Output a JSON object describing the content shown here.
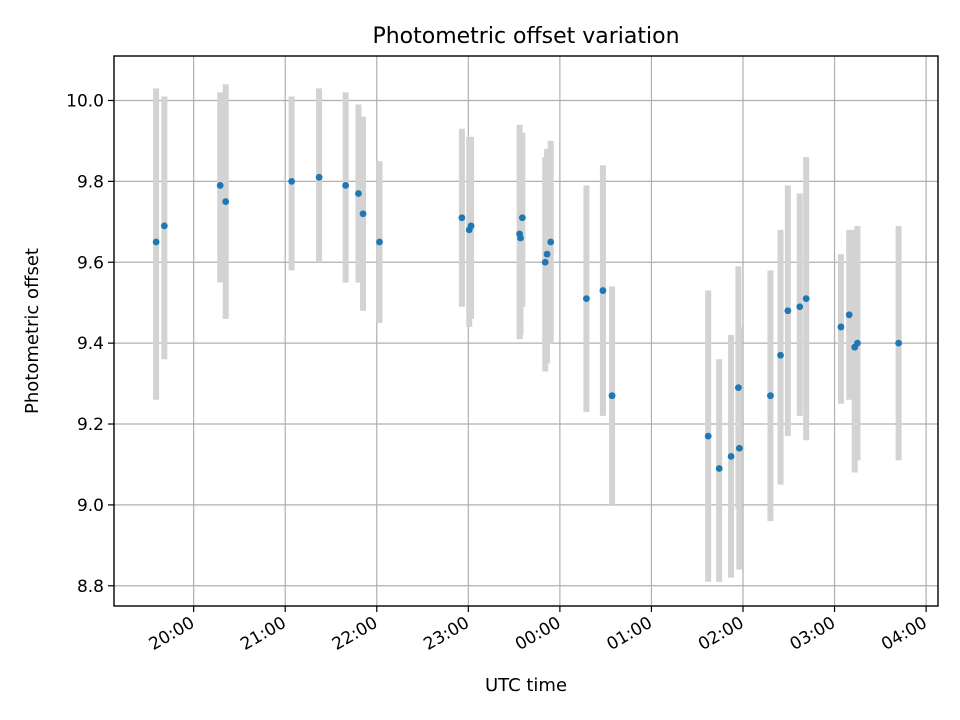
{
  "chart_data": {
    "type": "scatter",
    "title": "Photometric offset variation",
    "xlabel": "UTC time",
    "ylabel": "Photometric offset",
    "x_axis": {
      "type": "time",
      "range_hours": [
        19.13,
        28.13
      ],
      "ticks": [
        {
          "hour": 20,
          "label": "20:00"
        },
        {
          "hour": 21,
          "label": "21:00"
        },
        {
          "hour": 22,
          "label": "22:00"
        },
        {
          "hour": 23,
          "label": "23:00"
        },
        {
          "hour": 24,
          "label": "00:00"
        },
        {
          "hour": 25,
          "label": "01:00"
        },
        {
          "hour": 26,
          "label": "02:00"
        },
        {
          "hour": 27,
          "label": "03:00"
        },
        {
          "hour": 28,
          "label": "04:00"
        }
      ]
    },
    "y_axis": {
      "range": [
        8.75,
        10.11
      ],
      "ticks": [
        {
          "value": 8.8,
          "label": "8.8"
        },
        {
          "value": 9.0,
          "label": "9.0"
        },
        {
          "value": 9.2,
          "label": "9.2"
        },
        {
          "value": 9.4,
          "label": "9.4"
        },
        {
          "value": 9.6,
          "label": "9.6"
        },
        {
          "value": 9.8,
          "label": "9.8"
        },
        {
          "value": 10.0,
          "label": "10.0"
        }
      ]
    },
    "grid": true,
    "marker_color": "#1f77b4",
    "errorbar_color": "#d3d3d3",
    "points": [
      {
        "time": "19:35",
        "hour": 19.59,
        "y": 9.65,
        "ylow": 9.26,
        "yhigh": 10.03
      },
      {
        "time": "19:41",
        "hour": 19.68,
        "y": 9.69,
        "ylow": 9.36,
        "yhigh": 10.01
      },
      {
        "time": "20:18",
        "hour": 20.29,
        "y": 9.79,
        "ylow": 9.55,
        "yhigh": 10.02
      },
      {
        "time": "20:21",
        "hour": 20.35,
        "y": 9.75,
        "ylow": 9.46,
        "yhigh": 10.04
      },
      {
        "time": "21:04",
        "hour": 21.07,
        "y": 9.8,
        "ylow": 9.58,
        "yhigh": 10.01
      },
      {
        "time": "21:22",
        "hour": 21.37,
        "y": 9.81,
        "ylow": 9.6,
        "yhigh": 10.03
      },
      {
        "time": "21:39",
        "hour": 21.66,
        "y": 9.79,
        "ylow": 9.55,
        "yhigh": 10.02
      },
      {
        "time": "21:48",
        "hour": 21.8,
        "y": 9.77,
        "ylow": 9.55,
        "yhigh": 9.99
      },
      {
        "time": "21:51",
        "hour": 21.85,
        "y": 9.72,
        "ylow": 9.48,
        "yhigh": 9.96
      },
      {
        "time": "22:02",
        "hour": 22.03,
        "y": 9.65,
        "ylow": 9.45,
        "yhigh": 9.85
      },
      {
        "time": "22:56",
        "hour": 22.93,
        "y": 9.71,
        "ylow": 9.49,
        "yhigh": 9.93
      },
      {
        "time": "23:01",
        "hour": 23.01,
        "y": 9.68,
        "ylow": 9.44,
        "yhigh": 9.91
      },
      {
        "time": "23:02",
        "hour": 23.03,
        "y": 9.69,
        "ylow": 9.46,
        "yhigh": 9.91
      },
      {
        "time": "23:33",
        "hour": 23.56,
        "y": 9.67,
        "ylow": 9.41,
        "yhigh": 9.94
      },
      {
        "time": "23:34",
        "hour": 23.57,
        "y": 9.66,
        "ylow": 9.42,
        "yhigh": 9.92
      },
      {
        "time": "23:35",
        "hour": 23.59,
        "y": 9.71,
        "ylow": 9.49,
        "yhigh": 9.92
      },
      {
        "time": "23:50",
        "hour": 23.84,
        "y": 9.6,
        "ylow": 9.33,
        "yhigh": 9.86
      },
      {
        "time": "23:51",
        "hour": 23.86,
        "y": 9.62,
        "ylow": 9.35,
        "yhigh": 9.88
      },
      {
        "time": "23:54",
        "hour": 23.9,
        "y": 9.65,
        "ylow": 9.4,
        "yhigh": 9.9
      },
      {
        "time": "00:17",
        "hour": 24.29,
        "y": 9.51,
        "ylow": 9.23,
        "yhigh": 9.79
      },
      {
        "time": "00:28",
        "hour": 24.47,
        "y": 9.53,
        "ylow": 9.22,
        "yhigh": 9.84
      },
      {
        "time": "00:34",
        "hour": 24.57,
        "y": 9.27,
        "ylow": 9.0,
        "yhigh": 9.54
      },
      {
        "time": "01:37",
        "hour": 25.62,
        "y": 9.17,
        "ylow": 8.81,
        "yhigh": 9.53
      },
      {
        "time": "01:44",
        "hour": 25.74,
        "y": 9.09,
        "ylow": 8.81,
        "yhigh": 9.36
      },
      {
        "time": "01:52",
        "hour": 25.87,
        "y": 9.12,
        "ylow": 8.82,
        "yhigh": 9.42
      },
      {
        "time": "01:57",
        "hour": 25.95,
        "y": 9.29,
        "ylow": 8.99,
        "yhigh": 9.59
      },
      {
        "time": "01:58",
        "hour": 25.96,
        "y": 9.14,
        "ylow": 8.84,
        "yhigh": 9.44
      },
      {
        "time": "02:18",
        "hour": 26.3,
        "y": 9.27,
        "ylow": 8.96,
        "yhigh": 9.58
      },
      {
        "time": "02:24",
        "hour": 26.41,
        "y": 9.37,
        "ylow": 9.05,
        "yhigh": 9.68
      },
      {
        "time": "02:29",
        "hour": 26.49,
        "y": 9.48,
        "ylow": 9.17,
        "yhigh": 9.79
      },
      {
        "time": "02:37",
        "hour": 26.62,
        "y": 9.49,
        "ylow": 9.22,
        "yhigh": 9.77
      },
      {
        "time": "02:41",
        "hour": 26.69,
        "y": 9.51,
        "ylow": 9.16,
        "yhigh": 9.86
      },
      {
        "time": "03:04",
        "hour": 27.07,
        "y": 9.44,
        "ylow": 9.25,
        "yhigh": 9.62
      },
      {
        "time": "03:10",
        "hour": 27.16,
        "y": 9.47,
        "ylow": 9.26,
        "yhigh": 9.68
      },
      {
        "time": "03:13",
        "hour": 27.22,
        "y": 9.39,
        "ylow": 9.08,
        "yhigh": 9.68
      },
      {
        "time": "03:15",
        "hour": 27.25,
        "y": 9.4,
        "ylow": 9.11,
        "yhigh": 9.69
      },
      {
        "time": "03:42",
        "hour": 27.7,
        "y": 9.4,
        "ylow": 9.11,
        "yhigh": 9.69
      }
    ]
  }
}
